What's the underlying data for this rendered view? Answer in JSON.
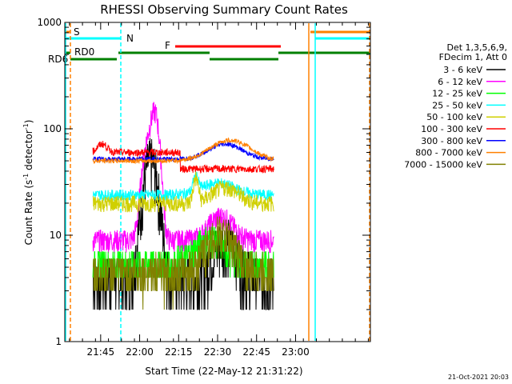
{
  "chart_data": {
    "type": "line",
    "title": "RHESSI Observing Summary Count Rates",
    "xlabel": "Start Time (22-May-12 21:31:22)",
    "ylabel_main": "Count Rate (s",
    "ylabel_sup1": "-1",
    "ylabel_mid": " detector",
    "ylabel_sup2": "-1",
    "ylabel_end": ")",
    "yscale": "log",
    "xlim": [
      21.52,
      23.48
    ],
    "ylim": [
      1,
      1000
    ],
    "xticks": [
      {
        "value": 21.75,
        "label": "21:45"
      },
      {
        "value": 22.0,
        "label": "22:00"
      },
      {
        "value": 22.25,
        "label": "22:15"
      },
      {
        "value": 22.5,
        "label": "22:30"
      },
      {
        "value": 22.75,
        "label": "22:45"
      },
      {
        "value": 23.0,
        "label": "23:00"
      }
    ],
    "yticks": [
      {
        "value": 1,
        "label": "1"
      },
      {
        "value": 10,
        "label": "10"
      },
      {
        "value": 100,
        "label": "100"
      },
      {
        "value": 1000,
        "label": "1000"
      }
    ],
    "legend_header": [
      "Det 1,3,5,6,9,",
      "FDecim 1, Att 0"
    ],
    "legend_position": "right",
    "series": [
      {
        "name": "3 - 6 keV",
        "color": "#000000"
      },
      {
        "name": "6 - 12 keV",
        "color": "#ff00ff"
      },
      {
        "name": "12 - 25 keV",
        "color": "#00ff00"
      },
      {
        "name": "25 - 50 keV",
        "color": "#00ffff"
      },
      {
        "name": "50 - 100 keV",
        "color": "#d0d000"
      },
      {
        "name": "100 - 300 keV",
        "color": "#ff0000"
      },
      {
        "name": "300 - 800 keV",
        "color": "#0000ff"
      },
      {
        "name": "800 - 7000 keV",
        "color": "#ff8000"
      },
      {
        "name": "7000 - 15000 keV",
        "color": "#808000"
      }
    ],
    "flags": [
      {
        "label": "S",
        "color": "#ff8000"
      },
      {
        "label": "N",
        "color": "#00ffff"
      },
      {
        "label": "F",
        "color": "#ff0000"
      },
      {
        "label": "RD0",
        "color": "#008000"
      },
      {
        "label": "RD6",
        "color": "#008000"
      }
    ],
    "footer": "21-Oct-2021 20:03"
  }
}
